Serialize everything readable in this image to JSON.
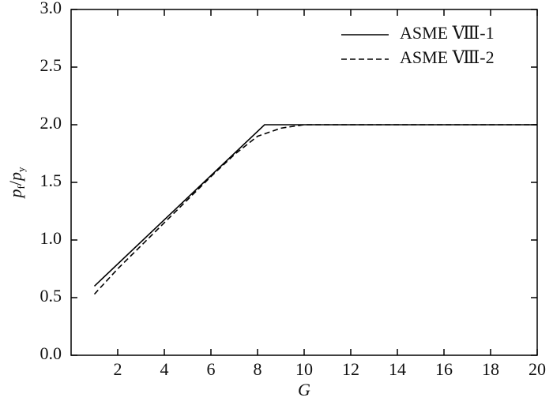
{
  "chart_data": {
    "type": "line",
    "xlabel": "G",
    "ylabel_parts": [
      "p",
      "f",
      "/",
      "p",
      "y"
    ],
    "xlim": [
      0,
      20
    ],
    "xticks": [
      2,
      4,
      6,
      8,
      10,
      12,
      14,
      16,
      18,
      20
    ],
    "ylim": [
      0,
      3
    ],
    "yticks": [
      {
        "value": 0,
        "label": "0.0"
      },
      {
        "value": 0.5,
        "label": "0.5"
      },
      {
        "value": 1,
        "label": "1.0"
      },
      {
        "value": 1.5,
        "label": "1.5"
      },
      {
        "value": 2,
        "label": "2.0"
      },
      {
        "value": 2.5,
        "label": "2.5"
      },
      {
        "value": 3,
        "label": "3.0"
      }
    ],
    "legend": "upper right",
    "series": [
      {
        "name": "ASME Ⅷ-1",
        "color": "#000000",
        "dash": "solid",
        "x": [
          1,
          8.3,
          20
        ],
        "values": [
          0.6,
          2.0,
          2.0
        ]
      },
      {
        "name": "ASME Ⅷ-2",
        "color": "#000000",
        "dash": "dashed",
        "x": [
          1,
          2,
          3,
          4,
          5,
          6,
          7,
          8,
          9,
          10,
          20
        ],
        "values": [
          0.53,
          0.75,
          0.95,
          1.15,
          1.35,
          1.55,
          1.74,
          1.9,
          1.97,
          2.0,
          2.0
        ]
      }
    ]
  }
}
